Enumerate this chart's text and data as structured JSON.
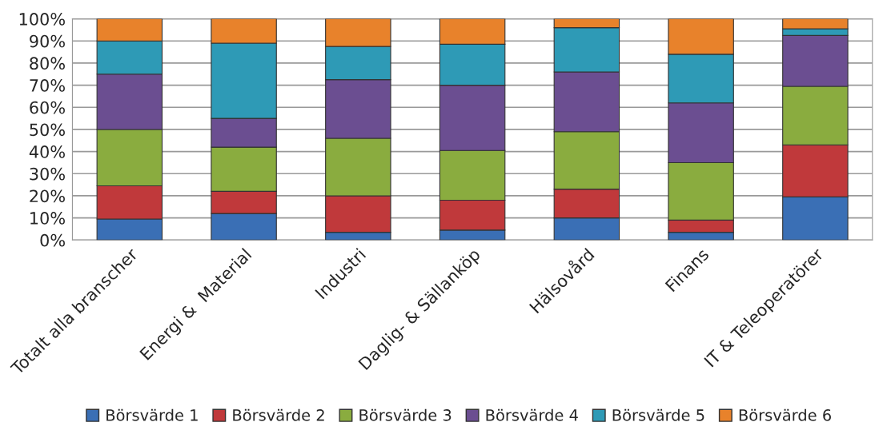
{
  "chart_data": {
    "type": "bar",
    "stacked": true,
    "categories": [
      "Totalt alla branscher",
      "Energi &  Material",
      "Industri",
      "Daglig- & Sällanköp",
      "Hälsovård",
      "Finans",
      "IT & Teleoperatörer"
    ],
    "series": [
      {
        "name": "Börsvärde 1",
        "color": "#3a6fb5",
        "values": [
          9.5,
          12,
          3.5,
          4.5,
          10,
          3.5,
          19.5
        ]
      },
      {
        "name": "Börsvärde 2",
        "color": "#c0393b",
        "values": [
          15,
          10,
          16.5,
          13.5,
          13,
          5.5,
          23.5
        ]
      },
      {
        "name": "Börsvärde 3",
        "color": "#8aac3f",
        "values": [
          25.5,
          20,
          26,
          22.5,
          26,
          26,
          26.5
        ]
      },
      {
        "name": "Börsvärde 4",
        "color": "#6b4e91",
        "values": [
          25,
          13,
          26.5,
          29.5,
          27,
          27,
          23
        ]
      },
      {
        "name": "Börsvärde 5",
        "color": "#2e9ab6",
        "values": [
          15,
          34,
          15,
          18.5,
          20,
          22,
          3
        ]
      },
      {
        "name": "Börsvärde 6",
        "color": "#e8822b",
        "values": [
          10,
          11,
          12.5,
          11.5,
          4,
          16,
          4.5
        ]
      }
    ],
    "ylim": [
      0,
      100
    ],
    "yticks": [
      {
        "value": 0,
        "label": "0%"
      },
      {
        "value": 10,
        "label": "10%"
      },
      {
        "value": 20,
        "label": "20%"
      },
      {
        "value": 30,
        "label": "30%"
      },
      {
        "value": 40,
        "label": "40%"
      },
      {
        "value": 50,
        "label": "50%"
      },
      {
        "value": 60,
        "label": "60%"
      },
      {
        "value": 70,
        "label": "70%"
      },
      {
        "value": 80,
        "label": "80%"
      },
      {
        "value": 90,
        "label": "90%"
      },
      {
        "value": 100,
        "label": "100%"
      }
    ],
    "grid": "y",
    "legend": "bottom"
  }
}
